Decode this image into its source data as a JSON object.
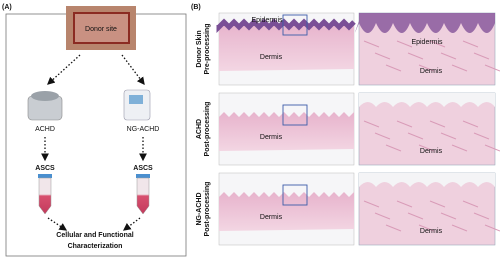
{
  "panel_a": {
    "label": "(A)",
    "donor_label": "Donor site",
    "devices": [
      {
        "name": "ACHD",
        "product": "ASCS"
      },
      {
        "name": "NG-ACHD",
        "product": "ASCS"
      }
    ],
    "outcome": [
      "Cellular and Functional",
      "Characterization"
    ]
  },
  "panel_b": {
    "label": "(B)",
    "rows": [
      {
        "label": [
          "Donor Skin",
          "Pre-processing"
        ],
        "overview": [
          "Epidermis",
          "Dermis"
        ],
        "zoom": [
          "Epidermis",
          "Dermis"
        ]
      },
      {
        "label": [
          "ACHD",
          "Post-processing"
        ],
        "overview": [
          "Dermis"
        ],
        "zoom": [
          "Dermis"
        ]
      },
      {
        "label": [
          "NG-ACHD",
          "Post-processing"
        ],
        "overview": [
          "Dermis"
        ],
        "zoom": [
          "Dermis"
        ]
      }
    ]
  }
}
